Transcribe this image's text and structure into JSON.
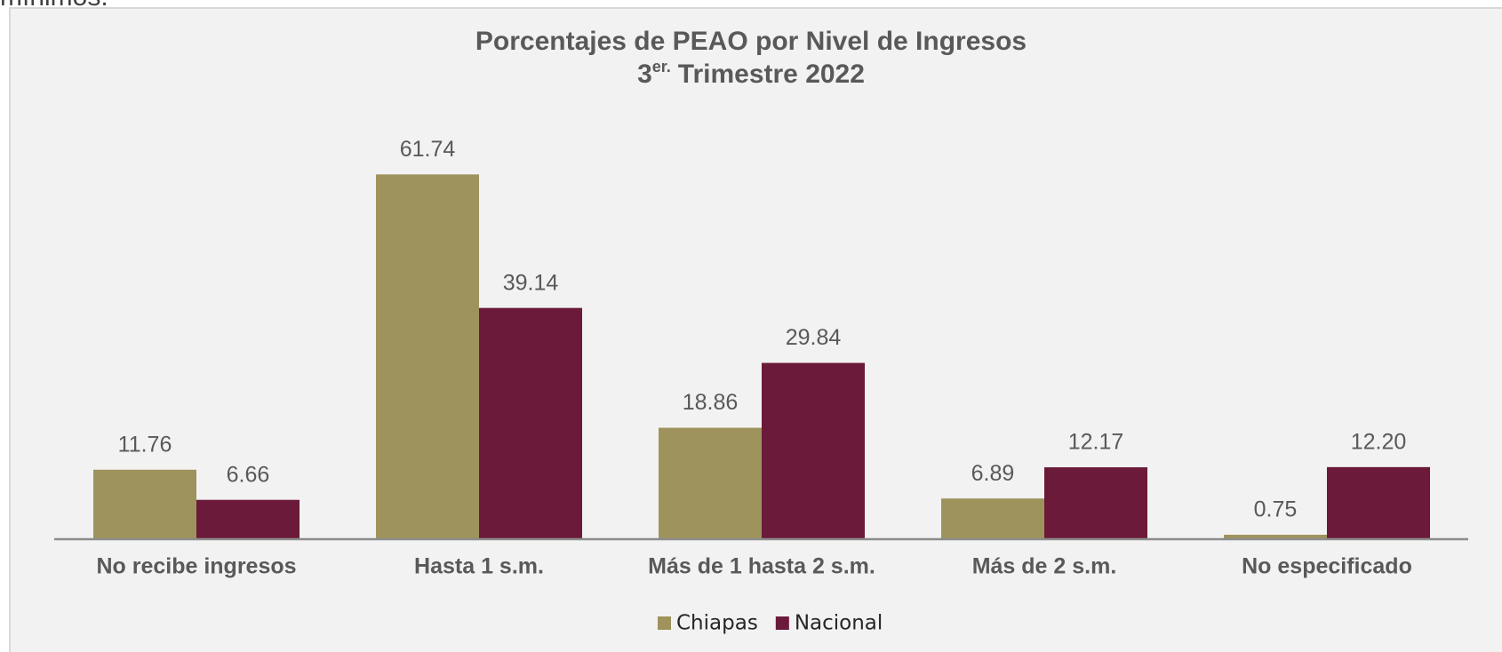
{
  "page_fragment": "mínimos.",
  "chart_data": {
    "type": "bar",
    "title": "Porcentajes de PEAO por Nivel de Ingresos",
    "subtitle_number": "3",
    "subtitle_superscript": "er.",
    "subtitle_rest": "Trimestre 2022",
    "categories": [
      "No recibe ingresos",
      "Hasta 1 s.m.",
      "Más de 1 hasta 2 s.m.",
      "Más de 2 s.m.",
      "No especificado"
    ],
    "series": [
      {
        "name": "Chiapas",
        "color": "#9e935c",
        "values": [
          11.76,
          61.74,
          18.86,
          6.89,
          0.75
        ],
        "value_labels": [
          "11.76",
          "61.74",
          "18.86",
          "6.89",
          "0.75"
        ]
      },
      {
        "name": "Nacional",
        "color": "#6b1a3a",
        "values": [
          6.66,
          39.14,
          29.84,
          12.17,
          12.2
        ],
        "value_labels": [
          "6.66",
          "39.14",
          "29.84",
          "12.17",
          "12.20"
        ]
      }
    ],
    "legend": "bottom"
  }
}
